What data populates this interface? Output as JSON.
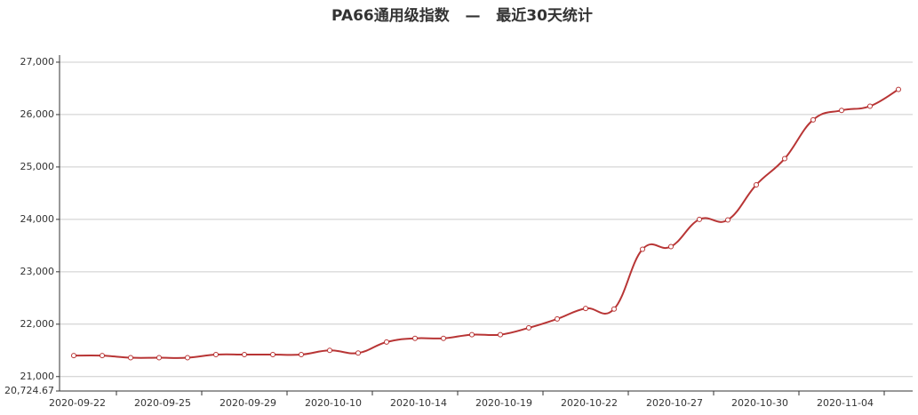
{
  "chart_data": {
    "type": "line",
    "title": "PA66通用级指数   —   最近30天统计",
    "categories": [
      "2020-09-22",
      null,
      null,
      "2020-09-25",
      null,
      null,
      "2020-09-29",
      null,
      null,
      "2020-10-10",
      null,
      null,
      "2020-10-14",
      null,
      null,
      "2020-10-19",
      null,
      null,
      "2020-10-22",
      null,
      null,
      "2020-10-27",
      null,
      null,
      "2020-10-30",
      null,
      null,
      "2020-11-04",
      null,
      null
    ],
    "series": [
      {
        "color": "#b83535",
        "values": [
          21400,
          21400,
          21360,
          21360,
          21360,
          21420,
          21420,
          21420,
          21420,
          21500,
          21450,
          21660,
          21730,
          21730,
          21800,
          21800,
          21930,
          22100,
          22300,
          22290,
          23430,
          23480,
          24000,
          23990,
          24660,
          25160,
          25900,
          26080,
          26160,
          26480
        ]
      }
    ],
    "ylim": [
      20724.67,
      27135
    ],
    "yticks": [
      {
        "value": 20724.67,
        "label": "20,724.67"
      },
      {
        "value": 21000,
        "label": "21,000"
      },
      {
        "value": 22000,
        "label": "22,000"
      },
      {
        "value": 23000,
        "label": "23,000"
      },
      {
        "value": 24000,
        "label": "24,000"
      },
      {
        "value": 25000,
        "label": "25,000"
      },
      {
        "value": 26000,
        "label": "26,000"
      },
      {
        "value": 27000,
        "label": "27,000"
      }
    ],
    "grid": true
  }
}
